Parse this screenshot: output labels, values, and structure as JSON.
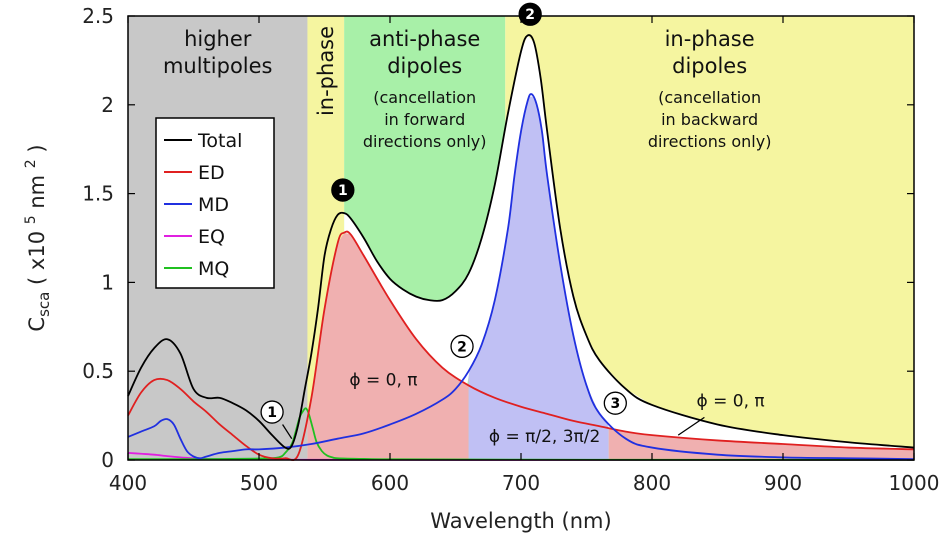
{
  "chart_data": {
    "type": "line",
    "xlabel": "Wavelength (nm)",
    "ylabel": "( x10 nm )",
    "ylabel_main": "C",
    "ylabel_sub": "sca",
    "ylabel_exp": "5",
    "ylabel_exp2": "2",
    "xlim": [
      400,
      1000
    ],
    "ylim": [
      0,
      2.5
    ],
    "xticks": [
      400,
      500,
      600,
      700,
      800,
      900,
      1000
    ],
    "yticks": [
      0,
      0.5,
      1,
      1.5,
      2,
      2.5
    ],
    "ytick_labels": [
      "0",
      "0.5",
      "1",
      "1.5",
      "2",
      "2.5"
    ],
    "grid": false,
    "legend_position": "upper-left",
    "regions": [
      {
        "x0": 400,
        "x1": 537,
        "color": "#c8c8c8",
        "lines": [
          "higher",
          "multipoles"
        ],
        "sub": []
      },
      {
        "x0": 537,
        "x1": 565,
        "color": "#f5f5a0",
        "lines": [
          "in-phase"
        ],
        "sub": []
      },
      {
        "x0": 565,
        "x1": 688,
        "color": "#a8f0a8",
        "lines": [
          "anti-phase",
          "dipoles"
        ],
        "sub": [
          "(cancellation",
          "in forward",
          "directions only)"
        ]
      },
      {
        "x0": 688,
        "x1": 1000,
        "color": "#f5f5a0",
        "lines": [
          "in-phase",
          "dipoles"
        ],
        "sub": [
          "(cancellation",
          "in backward",
          "directions only)"
        ]
      }
    ],
    "series": [
      {
        "name": "Total",
        "color": "#000000",
        "x": [
          400,
          410,
          420,
          430,
          440,
          450,
          460,
          470,
          480,
          490,
          500,
          510,
          520,
          525,
          530,
          535,
          540,
          545,
          550,
          555,
          560,
          565,
          570,
          580,
          590,
          600,
          610,
          620,
          630,
          640,
          650,
          660,
          670,
          680,
          690,
          700,
          705,
          710,
          715,
          720,
          730,
          740,
          750,
          760,
          780,
          800,
          850,
          900,
          950,
          1000
        ],
        "y": [
          0.36,
          0.52,
          0.63,
          0.68,
          0.6,
          0.4,
          0.35,
          0.35,
          0.32,
          0.28,
          0.22,
          0.14,
          0.07,
          0.08,
          0.2,
          0.4,
          0.6,
          0.85,
          1.15,
          1.3,
          1.38,
          1.39,
          1.36,
          1.25,
          1.12,
          1.02,
          0.96,
          0.92,
          0.9,
          0.9,
          0.95,
          1.05,
          1.25,
          1.55,
          1.95,
          2.3,
          2.39,
          2.35,
          2.15,
          1.85,
          1.3,
          0.92,
          0.7,
          0.56,
          0.4,
          0.31,
          0.2,
          0.14,
          0.1,
          0.07
        ]
      },
      {
        "name": "ED",
        "color": "#e02020",
        "x": [
          400,
          410,
          420,
          430,
          440,
          450,
          460,
          470,
          480,
          490,
          500,
          510,
          520,
          530,
          540,
          550,
          560,
          565,
          570,
          580,
          600,
          620,
          640,
          660,
          680,
          700,
          720,
          740,
          760,
          780,
          800,
          850,
          900,
          950,
          1000
        ],
        "y": [
          0.25,
          0.38,
          0.45,
          0.45,
          0.4,
          0.33,
          0.27,
          0.2,
          0.14,
          0.08,
          0.03,
          0.01,
          0.01,
          0.03,
          0.35,
          0.85,
          1.22,
          1.28,
          1.27,
          1.15,
          0.9,
          0.68,
          0.52,
          0.42,
          0.35,
          0.3,
          0.26,
          0.22,
          0.19,
          0.16,
          0.14,
          0.11,
          0.09,
          0.07,
          0.06
        ]
      },
      {
        "name": "MD",
        "color": "#2030e0",
        "x": [
          400,
          410,
          420,
          425,
          430,
          435,
          440,
          445,
          450,
          455,
          460,
          470,
          480,
          490,
          500,
          520,
          540,
          560,
          580,
          600,
          620,
          640,
          650,
          660,
          670,
          680,
          690,
          695,
          700,
          705,
          708,
          712,
          716,
          720,
          730,
          740,
          750,
          760,
          780,
          800,
          850,
          900,
          950,
          1000
        ],
        "y": [
          0.13,
          0.16,
          0.19,
          0.22,
          0.23,
          0.2,
          0.12,
          0.05,
          0.02,
          0.01,
          0.02,
          0.04,
          0.05,
          0.06,
          0.06,
          0.07,
          0.09,
          0.12,
          0.15,
          0.2,
          0.26,
          0.34,
          0.4,
          0.5,
          0.65,
          0.9,
          1.3,
          1.6,
          1.85,
          2.02,
          2.06,
          2.0,
          1.85,
          1.6,
          1.1,
          0.7,
          0.42,
          0.26,
          0.12,
          0.07,
          0.03,
          0.015,
          0.01,
          0.005
        ]
      },
      {
        "name": "EQ",
        "color": "#e020e0",
        "x": [
          400,
          410,
          420,
          430,
          440,
          450,
          460,
          470,
          480,
          490,
          500,
          520,
          540,
          560,
          600,
          700,
          800,
          900,
          1000
        ],
        "y": [
          0.04,
          0.035,
          0.03,
          0.022,
          0.015,
          0.01,
          0.006,
          0.004,
          0.003,
          0.002,
          0.002,
          0.002,
          0.001,
          0.001,
          0.001,
          0.0,
          0.0,
          0.0,
          0.0
        ]
      },
      {
        "name": "MQ",
        "color": "#20c020",
        "x": [
          400,
          450,
          500,
          515,
          520,
          525,
          528,
          531,
          534,
          536,
          538,
          541,
          544,
          548,
          552,
          556,
          560,
          580,
          600,
          700,
          800,
          900,
          1000
        ],
        "y": [
          0.005,
          0.005,
          0.008,
          0.015,
          0.04,
          0.09,
          0.16,
          0.24,
          0.28,
          0.29,
          0.26,
          0.18,
          0.1,
          0.05,
          0.025,
          0.015,
          0.01,
          0.006,
          0.004,
          0.002,
          0.001,
          0.001,
          0.001
        ]
      }
    ],
    "fills": [
      {
        "x0": 537,
        "x1": 660,
        "color": "#f0b0b0",
        "under": "ED"
      },
      {
        "x0": 660,
        "x1": 767,
        "color": "#c0c0f4",
        "under": "MD"
      },
      {
        "x0": 767,
        "x1": 1000,
        "color": "#f0b0b0",
        "under": "ED"
      }
    ],
    "markers": [
      {
        "label": "1",
        "style": "filled",
        "x": 564,
        "y": 1.52
      },
      {
        "label": "2",
        "style": "filled",
        "x": 707,
        "y": 2.51
      },
      {
        "label": "1",
        "style": "open",
        "x": 510,
        "y": 0.27
      },
      {
        "label": "2",
        "style": "open",
        "x": 655,
        "y": 0.64
      },
      {
        "label": "3",
        "style": "open",
        "x": 772,
        "y": 0.32
      }
    ],
    "annotations": [
      {
        "text": "ϕ = 0, π",
        "x": 595,
        "y": 0.42,
        "anchor": "middle"
      },
      {
        "text": "ϕ = π/2, 3π/2",
        "x": 718,
        "y": 0.1,
        "anchor": "middle"
      },
      {
        "text": "ϕ = 0, π",
        "x": 860,
        "y": 0.3,
        "anchor": "middle"
      }
    ],
    "arrows": [
      {
        "from": [
          518,
          0.2
        ],
        "to": [
          525,
          0.12
        ]
      },
      {
        "from": [
          840,
          0.24
        ],
        "to": [
          820,
          0.14
        ]
      }
    ]
  }
}
